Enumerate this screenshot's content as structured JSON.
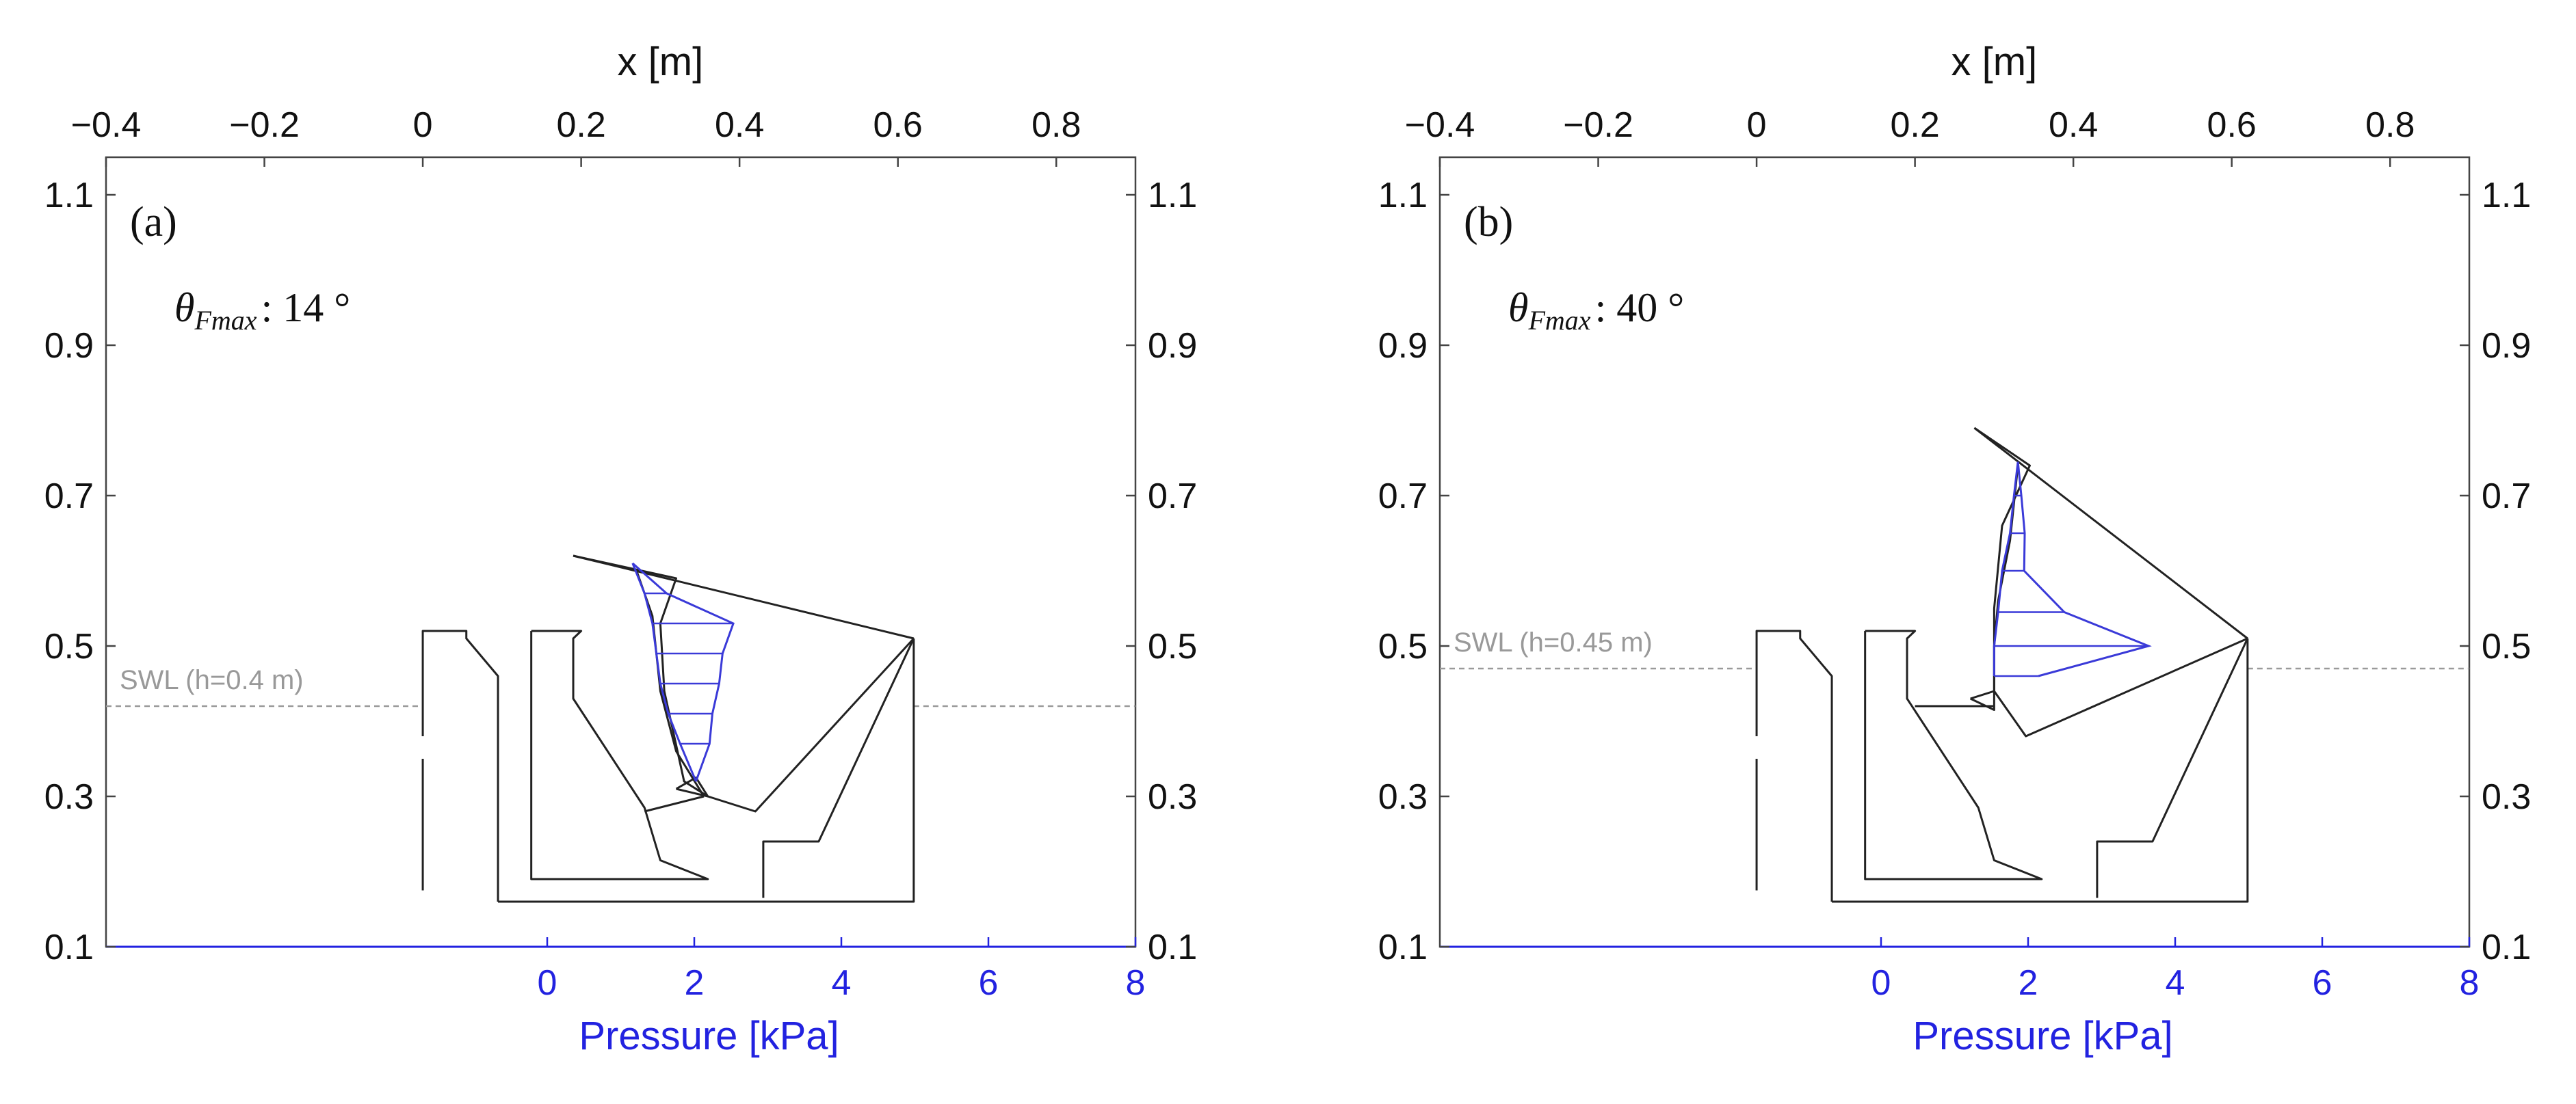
{
  "colors": {
    "axis": "#444444",
    "structure": "#222222",
    "pressure": "#3a3ad8",
    "swl": "#9a9a9a",
    "pressure_axis": "#2222e0"
  },
  "chart_data": [
    {
      "type": "line",
      "panel_label": "(a)",
      "theta_label": "θFmax : 14 °",
      "theta_symbol": "θ",
      "theta_subscript": "Fmax",
      "theta_value": ": 14 °",
      "x_top_label": "x [m]",
      "x_top_range": [
        -0.4,
        0.9
      ],
      "x_top_ticks": [
        "−0.4",
        "−0.2",
        "0",
        "0.2",
        "0.4",
        "0.6",
        "0.8"
      ],
      "x_bottom_label": "Pressure [kPa]",
      "x_bottom_range": [
        -6.0,
        8.0
      ],
      "x_bottom_ticks": [
        "0",
        "2",
        "4",
        "6",
        "8"
      ],
      "y_range": [
        0.1,
        1.15
      ],
      "y_ticks": [
        "0.1",
        "0.3",
        "0.5",
        "0.7",
        "0.9",
        "1.1"
      ],
      "swl_label": "SWL (h=0.4 m)",
      "swl_level": 0.42,
      "structure": {
        "left_wall": [
          [
            0,
            0.175
          ],
          [
            0,
            0.52
          ],
          [
            0.055,
            0.52
          ],
          [
            0.055,
            0.51
          ],
          [
            0.095,
            0.46
          ],
          [
            0.095,
            0.16
          ]
        ],
        "chamber_inner": [
          [
            0.137,
            0.52
          ],
          [
            0.137,
            0.19
          ],
          [
            0.36,
            0.19
          ],
          [
            0.3,
            0.215
          ],
          [
            0.28,
            0.285
          ],
          [
            0.19,
            0.43
          ],
          [
            0.19,
            0.51
          ],
          [
            0.2,
            0.52
          ],
          [
            0.137,
            0.52
          ]
        ],
        "base": [
          [
            0.095,
            0.16
          ],
          [
            0.62,
            0.16
          ],
          [
            0.62,
            0.51
          ]
        ],
        "right_block": [
          [
            0.43,
            0.165
          ],
          [
            0.43,
            0.24
          ],
          [
            0.5,
            0.24
          ],
          [
            0.62,
            0.51
          ]
        ],
        "flap_outer": [
          [
            0.19,
            0.62
          ],
          [
            0.62,
            0.51
          ],
          [
            0.62,
            0.51
          ]
        ],
        "flap_shape": [
          [
            0.19,
            0.62
          ],
          [
            0.32,
            0.59
          ],
          [
            0.3,
            0.53
          ],
          [
            0.305,
            0.44
          ],
          [
            0.33,
            0.32
          ],
          [
            0.36,
            0.3
          ],
          [
            0.42,
            0.28
          ],
          [
            0.62,
            0.51
          ]
        ],
        "flap_face": [
          [
            0.27,
            0.6
          ],
          [
            0.29,
            0.54
          ],
          [
            0.3,
            0.44
          ],
          [
            0.32,
            0.36
          ],
          [
            0.355,
            0.3
          ]
        ],
        "arm": [
          [
            0.32,
            0.31
          ],
          [
            0.36,
            0.3
          ],
          [
            0.345,
            0.325
          ],
          [
            0.32,
            0.31
          ]
        ],
        "arm2": [
          [
            0.355,
            0.3
          ],
          [
            0.28,
            0.28
          ]
        ]
      },
      "pressure_profile": {
        "base": [
          [
            0.265,
            0.61
          ],
          [
            0.28,
            0.57
          ],
          [
            0.29,
            0.53
          ],
          [
            0.295,
            0.49
          ],
          [
            0.3,
            0.45
          ],
          [
            0.31,
            0.41
          ],
          [
            0.325,
            0.37
          ],
          [
            0.345,
            0.32
          ]
        ],
        "values_kpa": [
          0.0,
          0.3,
          1.1,
          0.9,
          0.8,
          0.6,
          0.4,
          0.0
        ]
      }
    },
    {
      "type": "line",
      "panel_label": "(b)",
      "theta_label": "θFmax : 40 °",
      "theta_symbol": "θ",
      "theta_subscript": "Fmax",
      "theta_value": ": 40 °",
      "x_top_label": "x [m]",
      "x_top_range": [
        -0.4,
        0.9
      ],
      "x_top_ticks": [
        "−0.4",
        "−0.2",
        "0",
        "0.2",
        "0.4",
        "0.6",
        "0.8"
      ],
      "x_bottom_label": "Pressure [kPa]",
      "x_bottom_range": [
        -6.0,
        8.0
      ],
      "x_bottom_ticks": [
        "0",
        "2",
        "4",
        "6",
        "8"
      ],
      "y_range": [
        0.1,
        1.15
      ],
      "y_ticks": [
        "0.1",
        "0.3",
        "0.5",
        "0.7",
        "0.9",
        "1.1"
      ],
      "swl_label": "SWL (h=0.45 m)",
      "swl_level": 0.47,
      "structure": {
        "left_wall": [
          [
            0,
            0.175
          ],
          [
            0,
            0.52
          ],
          [
            0.055,
            0.52
          ],
          [
            0.055,
            0.51
          ],
          [
            0.095,
            0.46
          ],
          [
            0.095,
            0.16
          ]
        ],
        "chamber_inner": [
          [
            0.137,
            0.52
          ],
          [
            0.137,
            0.19
          ],
          [
            0.36,
            0.19
          ],
          [
            0.3,
            0.215
          ],
          [
            0.28,
            0.285
          ],
          [
            0.19,
            0.43
          ],
          [
            0.19,
            0.51
          ],
          [
            0.2,
            0.52
          ],
          [
            0.137,
            0.52
          ]
        ],
        "base": [
          [
            0.095,
            0.16
          ],
          [
            0.62,
            0.16
          ],
          [
            0.62,
            0.51
          ]
        ],
        "right_block": [
          [
            0.43,
            0.165
          ],
          [
            0.43,
            0.24
          ],
          [
            0.5,
            0.24
          ],
          [
            0.62,
            0.51
          ]
        ],
        "flap_outer": [
          [
            0.275,
            0.79
          ],
          [
            0.62,
            0.51
          ],
          [
            0.62,
            0.51
          ]
        ],
        "flap_shape": [
          [
            0.275,
            0.79
          ],
          [
            0.345,
            0.74
          ],
          [
            0.31,
            0.66
          ],
          [
            0.3,
            0.55
          ],
          [
            0.3,
            0.44
          ],
          [
            0.34,
            0.38
          ],
          [
            0.62,
            0.51
          ]
        ],
        "flap_face": [
          [
            0.33,
            0.74
          ],
          [
            0.32,
            0.64
          ],
          [
            0.305,
            0.56
          ],
          [
            0.3,
            0.5
          ],
          [
            0.3,
            0.44
          ]
        ],
        "arm": [
          [
            0.27,
            0.43
          ],
          [
            0.3,
            0.44
          ],
          [
            0.3,
            0.415
          ],
          [
            0.27,
            0.43
          ]
        ],
        "arm2": [
          [
            0.3,
            0.42
          ],
          [
            0.2,
            0.42
          ]
        ]
      },
      "pressure_profile": {
        "base": [
          [
            0.33,
            0.745
          ],
          [
            0.325,
            0.7
          ],
          [
            0.32,
            0.65
          ],
          [
            0.31,
            0.6
          ],
          [
            0.305,
            0.545
          ],
          [
            0.3,
            0.5
          ],
          [
            0.3,
            0.46
          ]
        ],
        "values_kpa": [
          0.0,
          0.1,
          0.2,
          0.3,
          0.9,
          2.1,
          0.6
        ]
      }
    }
  ]
}
